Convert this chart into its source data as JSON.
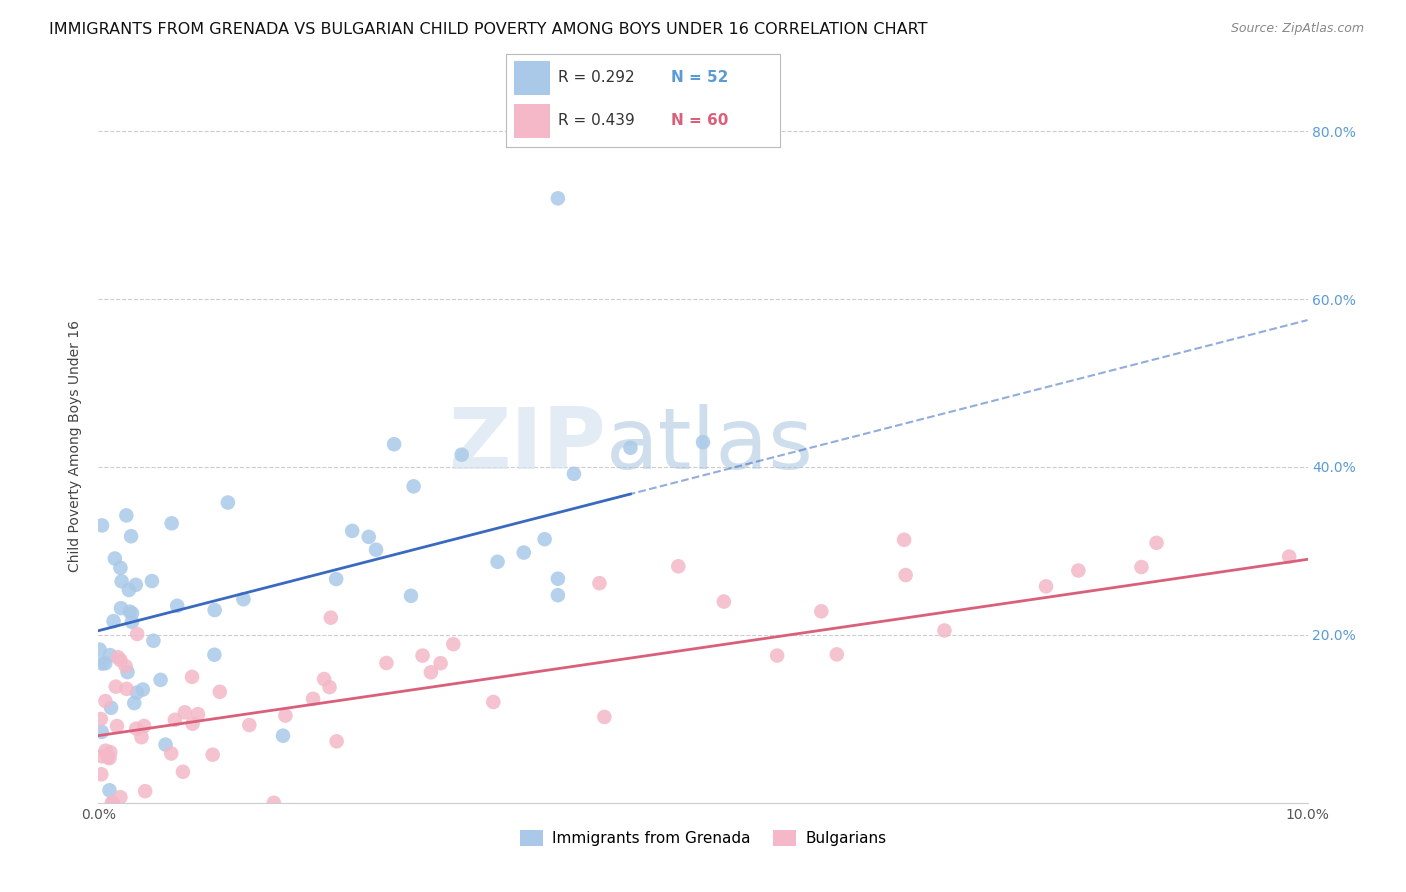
{
  "title": "IMMIGRANTS FROM GRENADA VS BULGARIAN CHILD POVERTY AMONG BOYS UNDER 16 CORRELATION CHART",
  "source": "Source: ZipAtlas.com",
  "ylabel": "Child Poverty Among Boys Under 16",
  "xlim": [
    0.0,
    0.1
  ],
  "ylim": [
    0.0,
    0.85
  ],
  "watermark_zip": "ZIP",
  "watermark_atlas": "atlas",
  "legend_r1": "R = 0.292",
  "legend_n1": "N = 52",
  "legend_r2": "R = 0.439",
  "legend_n2": "N = 60",
  "legend_label1": "Immigrants from Grenada",
  "legend_label2": "Bulgarians",
  "blue_color": "#aac9e8",
  "pink_color": "#f4b8c8",
  "blue_line_color": "#3a6abf",
  "pink_line_color": "#d9607a",
  "background_color": "#ffffff",
  "grid_color": "#cccccc",
  "title_fontsize": 11.5,
  "axis_fontsize": 10,
  "tick_fontsize": 10,
  "right_tick_color": "#5b9bd5"
}
